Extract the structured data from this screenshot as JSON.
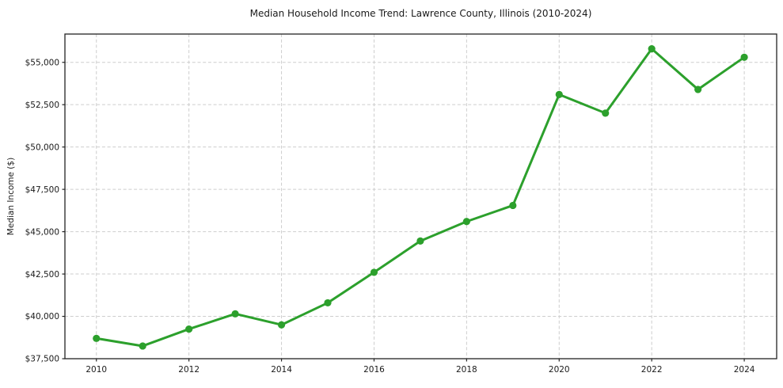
{
  "chart_data": {
    "type": "line",
    "title": "Median Household Income Trend: Lawrence County, Illinois (2010-2024)",
    "xlabel": "",
    "ylabel": "Median Income ($)",
    "x": [
      2010,
      2011,
      2012,
      2013,
      2014,
      2015,
      2016,
      2017,
      2018,
      2019,
      2020,
      2021,
      2022,
      2023,
      2024
    ],
    "values": [
      38700,
      38250,
      39250,
      40150,
      39500,
      40800,
      42600,
      44450,
      45600,
      46550,
      53100,
      52000,
      55800,
      53400,
      55300
    ],
    "xticks": {
      "values": [
        2010,
        2012,
        2014,
        2016,
        2018,
        2020,
        2022,
        2024
      ],
      "labels": [
        "2010",
        "2012",
        "2014",
        "2016",
        "2018",
        "2020",
        "2022",
        "2024"
      ]
    },
    "yticks": {
      "values": [
        37500,
        40000,
        42500,
        45000,
        47500,
        50000,
        52500,
        55000
      ],
      "labels": [
        "$37,500",
        "$40,000",
        "$42,500",
        "$45,000",
        "$47,500",
        "$50,000",
        "$52,500",
        "$55,000"
      ]
    },
    "xlim": [
      2009.32,
      2024.7
    ],
    "ylim": [
      37500,
      56670
    ],
    "grid": true,
    "legend_position": "none",
    "line_color": "#2ca02c",
    "marker": "circle"
  }
}
